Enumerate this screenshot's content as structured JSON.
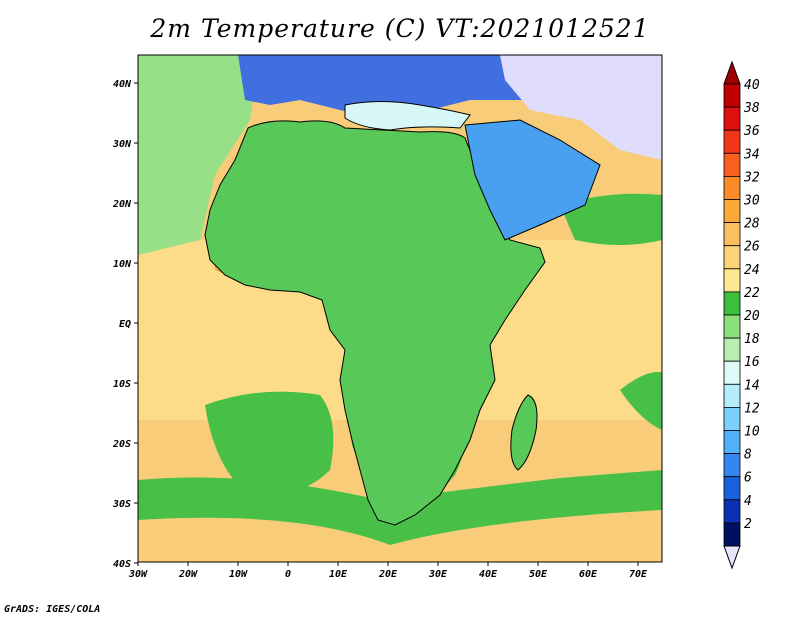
{
  "title": "2m Temperature (C) VT:2021012521",
  "footer": "GrADS: IGES/COLA",
  "x_ticks": [
    "30W",
    "20W",
    "10W",
    "0",
    "10E",
    "20E",
    "30E",
    "40E",
    "50E",
    "60E",
    "70E"
  ],
  "y_ticks": [
    "40N",
    "30N",
    "20N",
    "10N",
    "EQ",
    "10S",
    "20S",
    "30S",
    "40S"
  ],
  "colorbar": {
    "labels": [
      "40",
      "38",
      "36",
      "34",
      "32",
      "30",
      "28",
      "26",
      "24",
      "22",
      "20",
      "18",
      "16",
      "14",
      "12",
      "10",
      "8",
      "6",
      "4",
      "2"
    ],
    "colors": [
      "#c00000",
      "#e01010",
      "#f03818",
      "#f86020",
      "#fa8c28",
      "#faa838",
      "#fac060",
      "#fcd478",
      "#fce890",
      "#3cc03c",
      "#8ce07c",
      "#b8f0b0",
      "#e0fafa",
      "#b4ecfc",
      "#7cd0fc",
      "#50b0f8",
      "#3288f0",
      "#1a60dc",
      "#0a30b4",
      "#001060"
    ],
    "top_color": "#a00000",
    "bottom_color": "#e8e4fc"
  },
  "map_colors": {
    "ocean_tropical": "#f8cc78",
    "ocean_warm": "#fcdc88",
    "ocean_cool": "#48c048",
    "ocean_south": "#98e088",
    "med_sea": "#d8f8f8",
    "europe": "#4070e0",
    "east_north": "#e0dcfc",
    "sahara": "#6098e8",
    "sahel": "#f0b050",
    "central_africa": "#58c858",
    "south_africa": "#48c048",
    "highland": "#7cd0fc",
    "arabia": "#4aa0f0",
    "border": "#000000"
  }
}
